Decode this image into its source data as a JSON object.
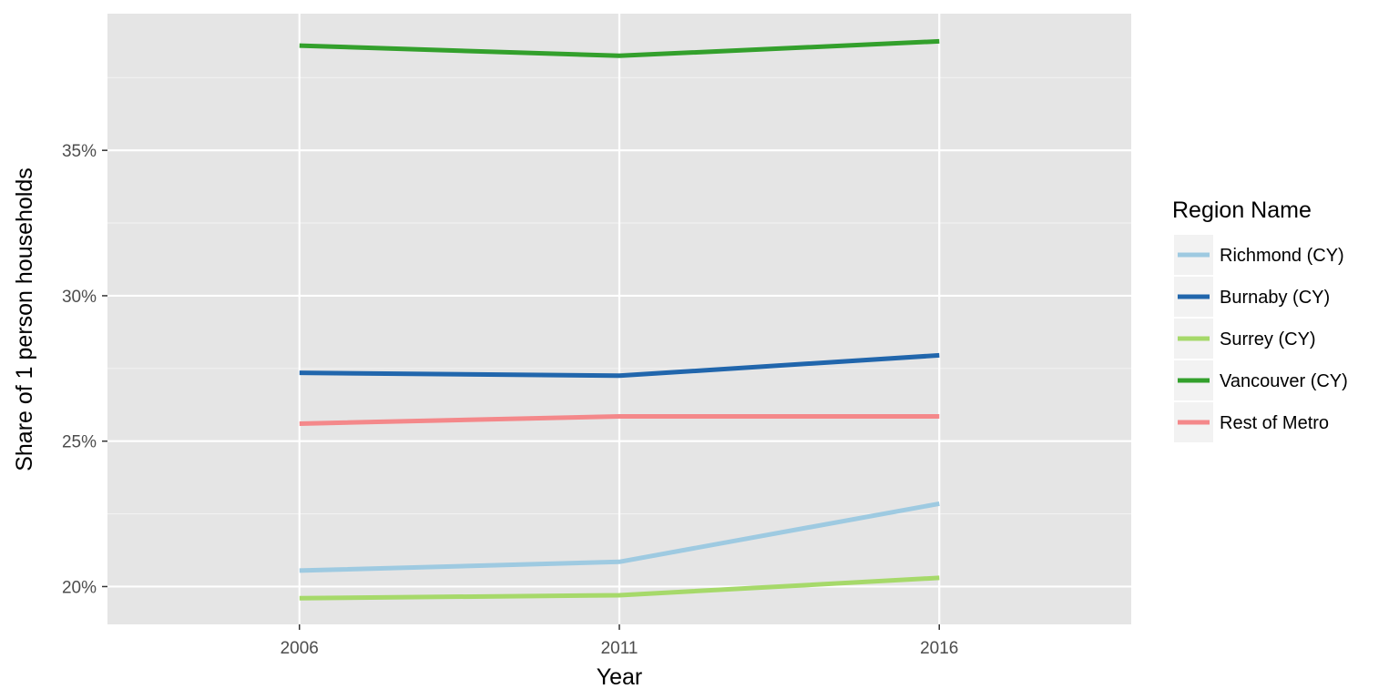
{
  "chart_data": {
    "type": "line",
    "xlabel": "Year",
    "ylabel": "Share of 1 person households",
    "x": [
      2006,
      2011,
      2016
    ],
    "x_tick_labels": [
      "2006",
      "2011",
      "2016"
    ],
    "xlim": [
      2003,
      2019
    ],
    "ylim": [
      18.7,
      39.7
    ],
    "y_ticks": [
      20,
      25,
      30,
      35
    ],
    "y_tick_labels": [
      "20%",
      "25%",
      "30%",
      "35%"
    ],
    "grid": true,
    "legend_title": "Region Name",
    "legend_position": "right",
    "series": [
      {
        "name": "Richmond (CY)",
        "color": "#9ecae1",
        "values": [
          20.55,
          20.85,
          22.85
        ]
      },
      {
        "name": "Burnaby (CY)",
        "color": "#2166ac",
        "values": [
          27.35,
          27.25,
          27.95
        ]
      },
      {
        "name": "Surrey (CY)",
        "color": "#a6d96a",
        "values": [
          19.6,
          19.7,
          20.3
        ]
      },
      {
        "name": "Vancouver (CY)",
        "color": "#33a02c",
        "values": [
          38.6,
          38.25,
          38.75
        ]
      },
      {
        "name": "Rest of Metro",
        "color": "#f4888a",
        "values": [
          25.6,
          25.85,
          25.85
        ]
      }
    ]
  }
}
